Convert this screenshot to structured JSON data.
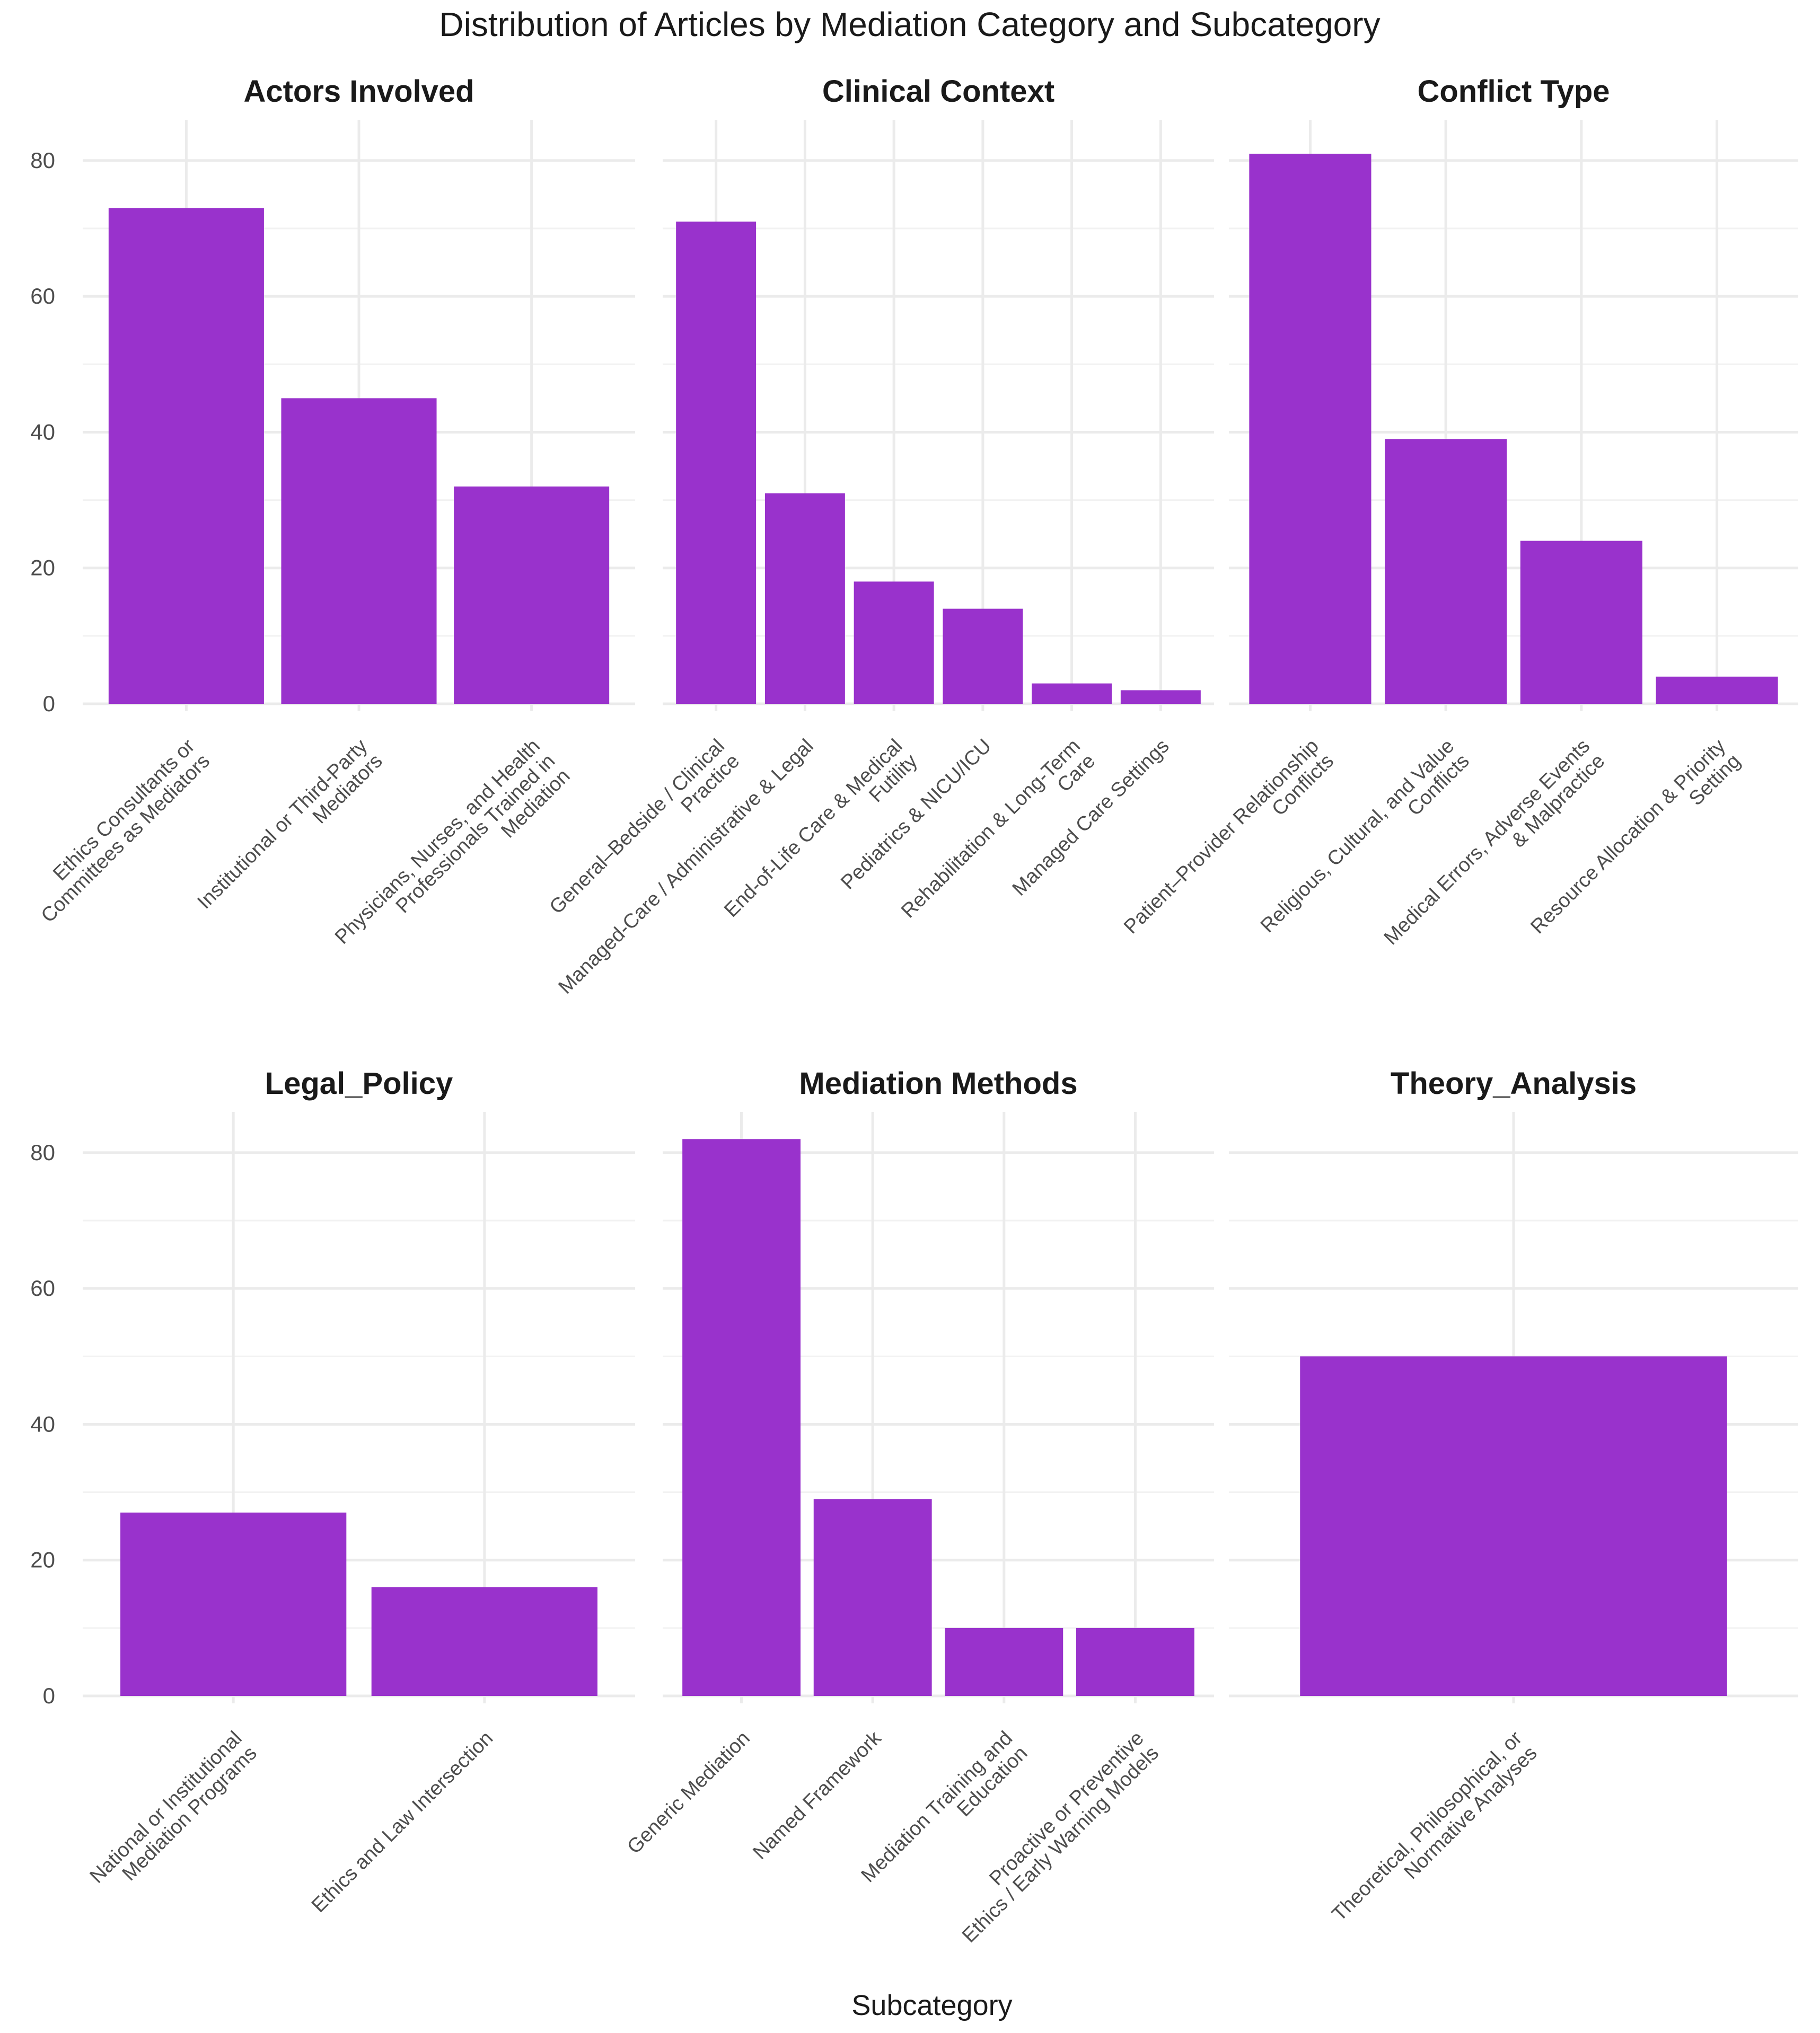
{
  "chart_data": {
    "type": "bar",
    "title": "Distribution of Articles by Mediation Category and Subcategory",
    "xlabel": "Subcategory",
    "ylabel": "",
    "ylim": [
      0,
      86
    ],
    "y_ticks": [
      "0",
      "20",
      "40",
      "60",
      "80"
    ],
    "bar_color": "#9932CC",
    "facets": [
      {
        "name": "Actors Involved",
        "categories": [
          [
            "Ethics Consultants or",
            "Committees as Mediators"
          ],
          [
            "Institutional or Third-Party",
            "Mediators"
          ],
          [
            "Physicians, Nurses, and Health",
            "Professionals Trained in",
            "Mediation"
          ]
        ],
        "values": [
          73,
          45,
          32
        ]
      },
      {
        "name": "Clinical Context",
        "categories": [
          [
            "General–Bedside / Clinical",
            "Practice"
          ],
          [
            "Managed-Care / Administrative & Legal"
          ],
          [
            "End-of-Life Care & Medical",
            "Futility"
          ],
          [
            "Pediatrics & NICU/ICU"
          ],
          [
            "Rehabilitation & Long-Term",
            "Care"
          ],
          [
            "Managed Care Settings"
          ]
        ],
        "values": [
          71,
          31,
          18,
          14,
          3,
          2
        ]
      },
      {
        "name": "Conflict Type",
        "categories": [
          [
            "Patient–Provider Relationship",
            "Conflicts"
          ],
          [
            "Religious, Cultural, and Value",
            "Conflicts"
          ],
          [
            "Medical Errors, Adverse Events",
            "& Malpractice"
          ],
          [
            "Resource Allocation & Priority",
            "Setting"
          ]
        ],
        "values": [
          81,
          39,
          24,
          4
        ]
      },
      {
        "name": "Legal_Policy",
        "categories": [
          [
            "National or Institutional",
            "Mediation Programs"
          ],
          [
            "Ethics and Law Intersection"
          ]
        ],
        "values": [
          27,
          16
        ]
      },
      {
        "name": "Mediation Methods",
        "categories": [
          [
            "Generic Mediation"
          ],
          [
            "Named Framework"
          ],
          [
            "Mediation Training and",
            "Education"
          ],
          [
            "Proactive or Preventive",
            "Ethics / Early Warning Models"
          ]
        ],
        "values": [
          82,
          29,
          10,
          10
        ]
      },
      {
        "name": "Theory_Analysis",
        "categories": [
          [
            "Theoretical, Philosophical, or",
            "Normative Analyses"
          ]
        ],
        "values": [
          50
        ]
      }
    ]
  }
}
